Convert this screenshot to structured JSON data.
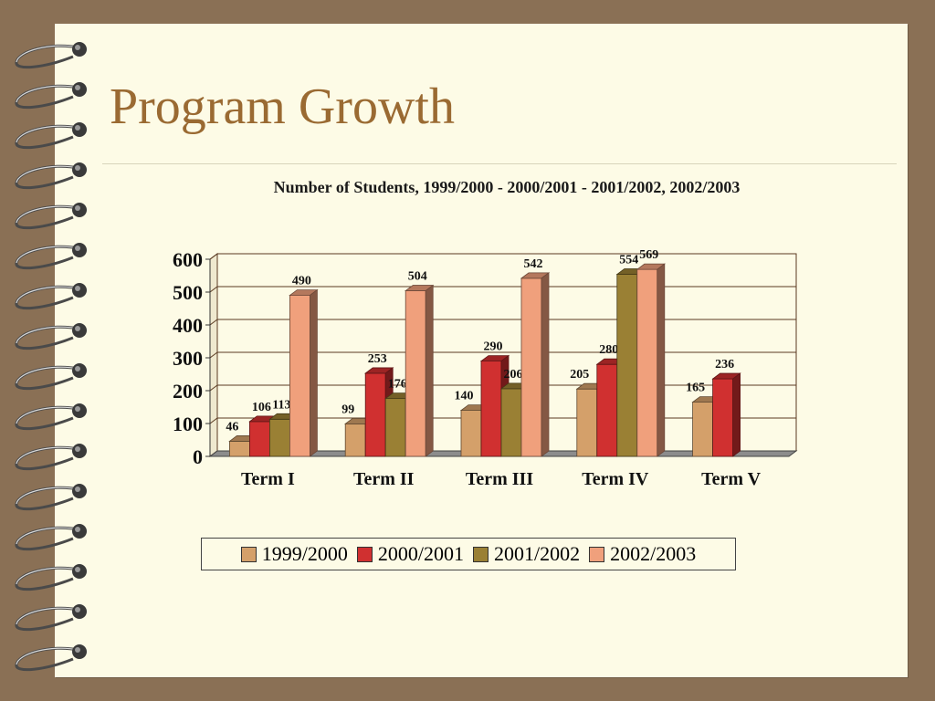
{
  "slide": {
    "title": "Program Growth",
    "colors": {
      "background": "#8a7055",
      "page": "#fdfbe6",
      "title": "#9a6a32"
    },
    "decoration": "spiral-binding-rings"
  },
  "chart_data": {
    "type": "bar",
    "title": "Number of Students, 1999/2000 - 2000/2001 - 2001/2002, 2002/2003",
    "xlabel": "",
    "ylabel": "",
    "ylim": [
      0,
      600
    ],
    "yticks": [
      "0",
      "100",
      "200",
      "300",
      "400",
      "500",
      "600"
    ],
    "grid": true,
    "legend_position": "bottom",
    "categories": [
      "Term I",
      "Term II",
      "Term III",
      "Term IV",
      "Term V"
    ],
    "series": [
      {
        "name": "1999/2000",
        "color": "#d4a06a",
        "values": [
          46,
          99,
          140,
          205,
          165
        ]
      },
      {
        "name": "2000/2001",
        "color": "#d03030",
        "values": [
          106,
          253,
          290,
          280,
          236
        ]
      },
      {
        "name": "2001/2002",
        "color": "#9a8034",
        "values": [
          113,
          176,
          206,
          554,
          null
        ]
      },
      {
        "name": "2002/2003",
        "color": "#f0a07c",
        "values": [
          490,
          504,
          542,
          569,
          null
        ]
      }
    ]
  }
}
